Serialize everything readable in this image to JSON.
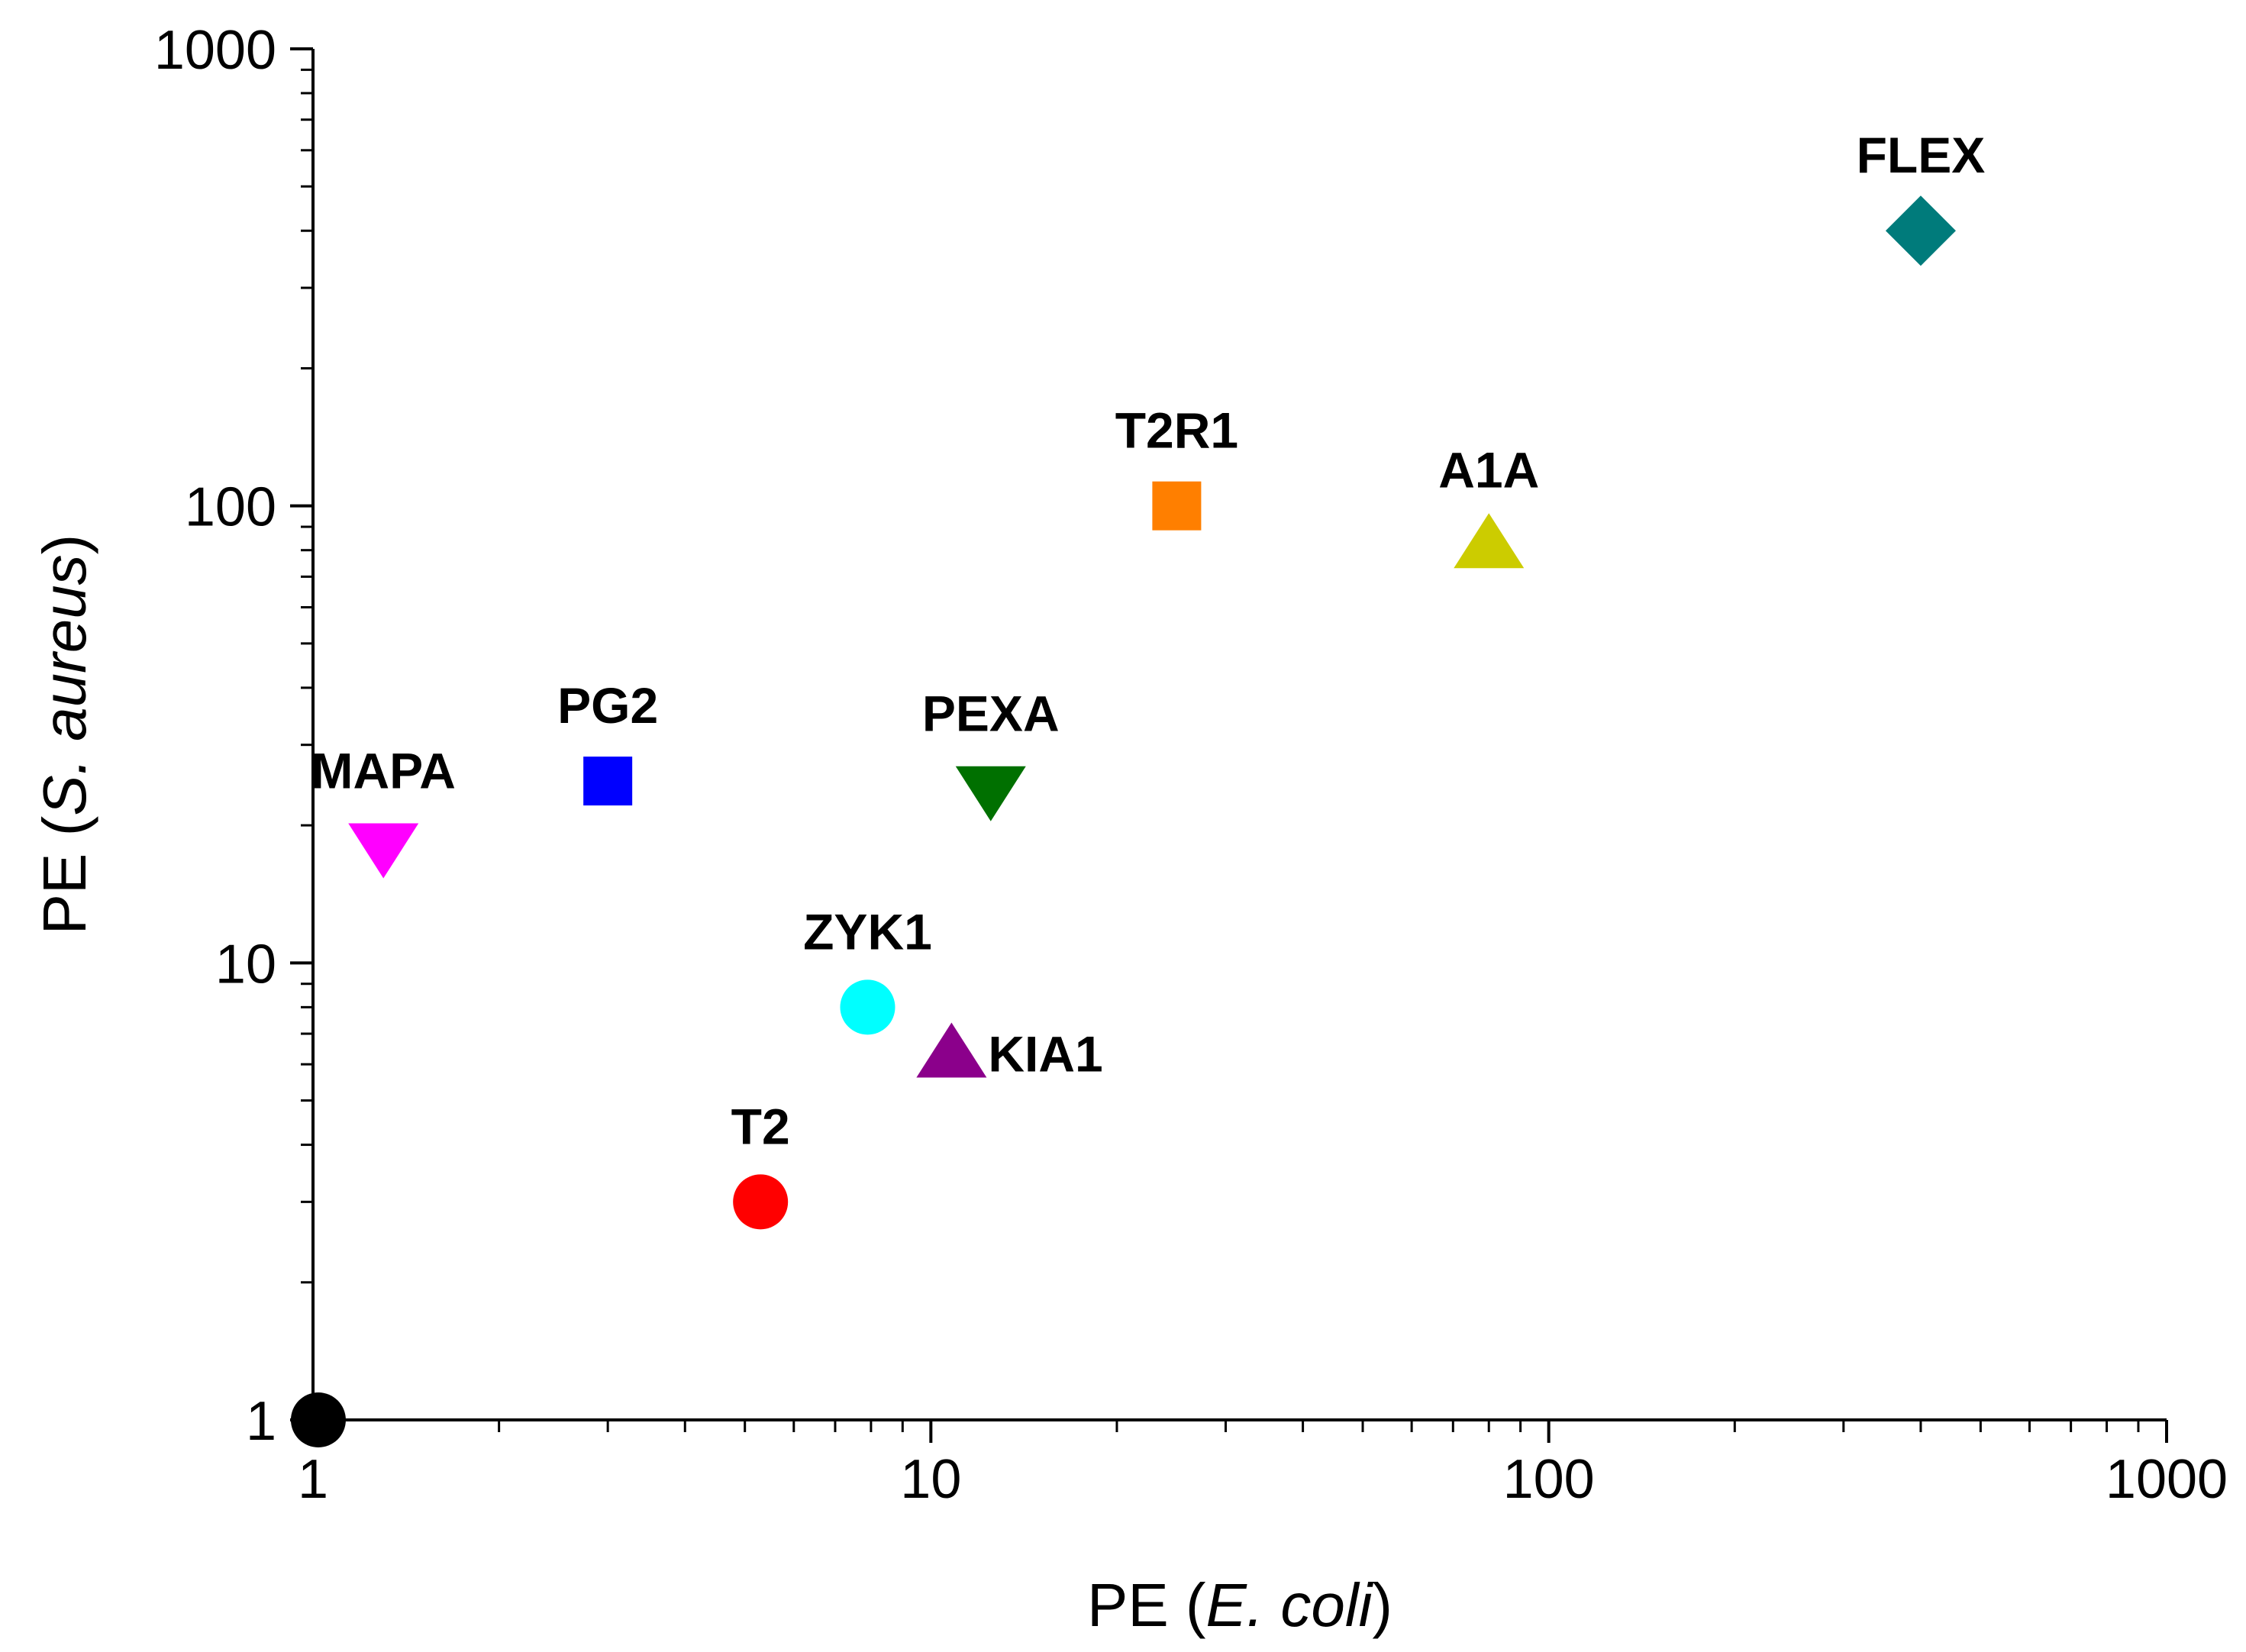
{
  "chart_data": {
    "type": "scatter",
    "title": "",
    "x_scale": "log",
    "y_scale": "log",
    "xlim": [
      1,
      1000
    ],
    "ylim": [
      1,
      1000
    ],
    "x_ticks": [
      {
        "value": 1,
        "label": "1"
      },
      {
        "value": 10,
        "label": "10"
      },
      {
        "value": 100,
        "label": "100"
      },
      {
        "value": 1000,
        "label": "1000"
      }
    ],
    "y_ticks": [
      {
        "value": 1,
        "label": "1"
      },
      {
        "value": 10,
        "label": "10"
      },
      {
        "value": 100,
        "label": "100"
      },
      {
        "value": 1000,
        "label": "1000"
      }
    ],
    "xlabel": {
      "prefix": "PE (",
      "italic": "E. coli",
      "suffix": ")"
    },
    "ylabel": {
      "prefix": "PE (",
      "italic": "S. aureus",
      "suffix": ")"
    },
    "grid": false,
    "points": [
      {
        "label": "",
        "x": 1.02,
        "y": 1.0,
        "marker": "circle",
        "color": "#000000",
        "label_pos": "none"
      },
      {
        "label": "MAPA",
        "x": 1.3,
        "y": 18,
        "marker": "triangle-down",
        "color": "#ff00ff",
        "label_pos": "above"
      },
      {
        "label": "PG2",
        "x": 3.0,
        "y": 25,
        "marker": "square",
        "color": "#0000ff",
        "label_pos": "above"
      },
      {
        "label": "PEXA",
        "x": 12.5,
        "y": 24,
        "marker": "triangle-down",
        "color": "#007000",
        "label_pos": "above"
      },
      {
        "label": "ZYK1",
        "x": 7.9,
        "y": 8,
        "marker": "circle",
        "color": "#00ffff",
        "label_pos": "above"
      },
      {
        "label": "KIA1",
        "x": 10.8,
        "y": 6.3,
        "marker": "triangle-up",
        "color": "#8b008b",
        "label_pos": "right"
      },
      {
        "label": "T2",
        "x": 5.3,
        "y": 3,
        "marker": "circle",
        "color": "#ff0000",
        "label_pos": "above"
      },
      {
        "label": "T2R1",
        "x": 25,
        "y": 100,
        "marker": "square",
        "color": "#ff7f00",
        "label_pos": "above"
      },
      {
        "label": "A1A",
        "x": 80,
        "y": 82,
        "marker": "triangle-up",
        "color": "#cccc00",
        "label_pos": "above"
      },
      {
        "label": "FLEX",
        "x": 400,
        "y": 400,
        "marker": "diamond",
        "color": "#007b7b",
        "label_pos": "above"
      }
    ]
  }
}
